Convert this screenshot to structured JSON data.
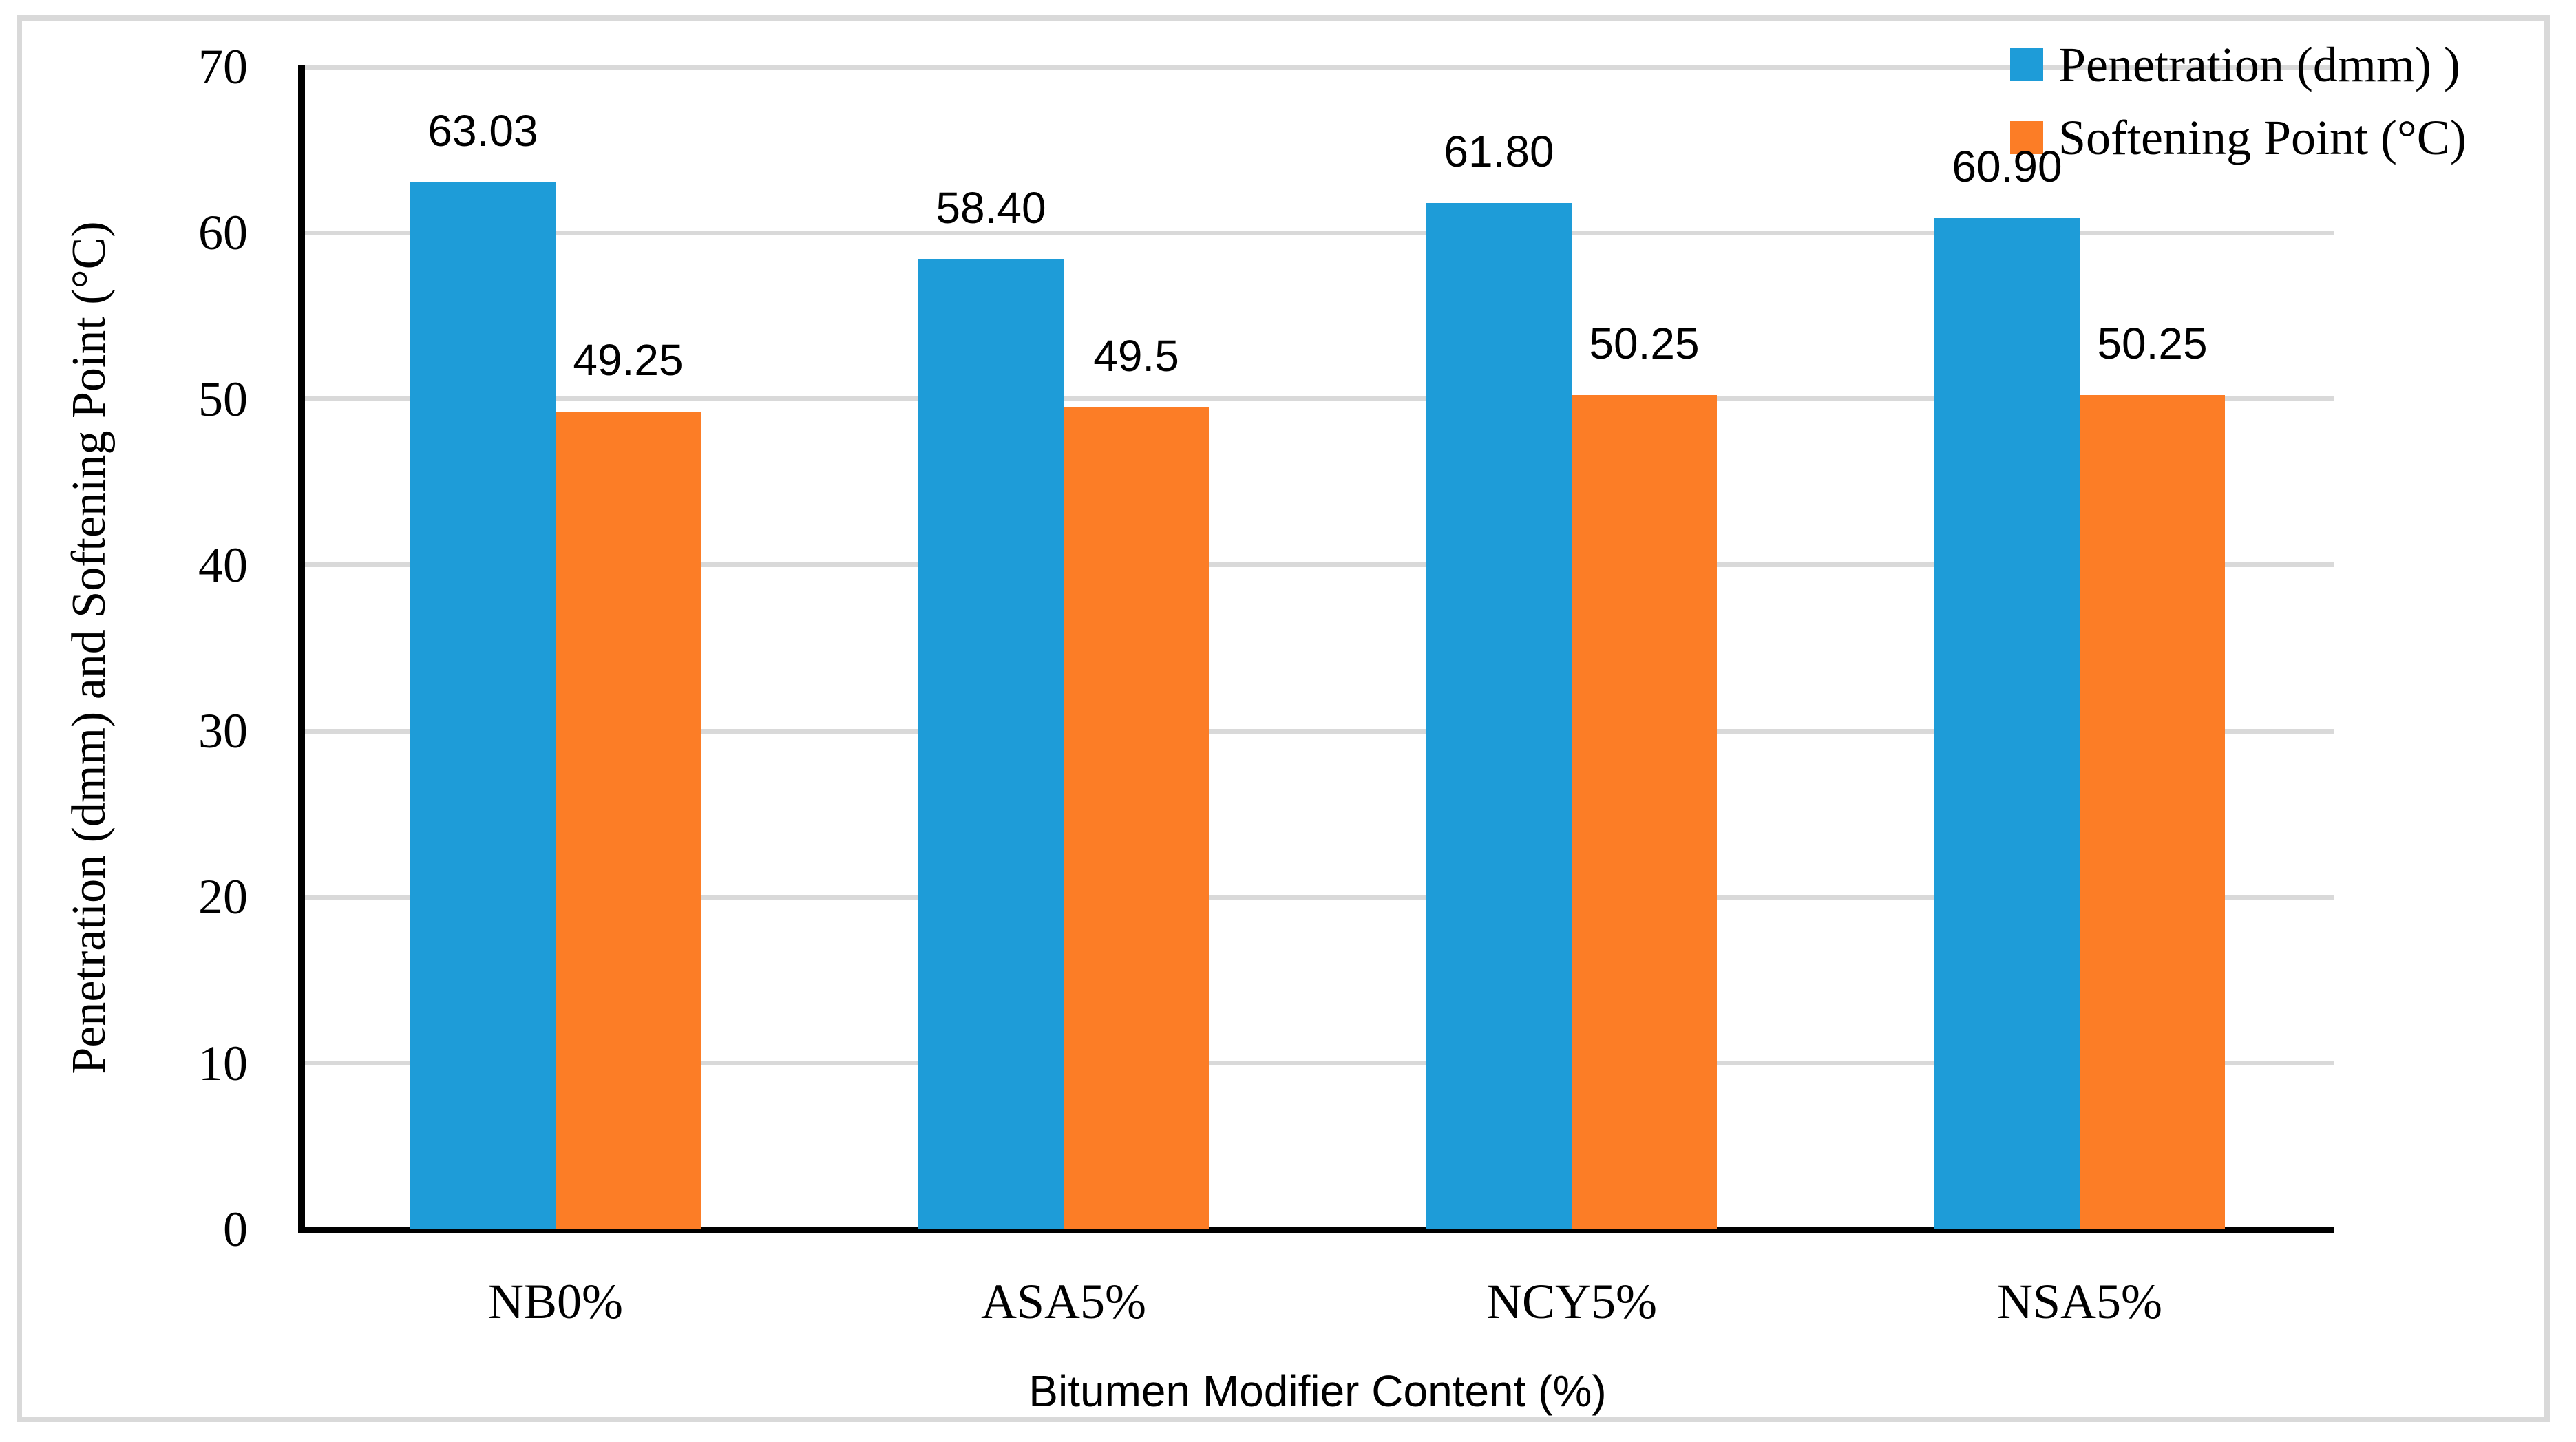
{
  "chart_data": {
    "type": "bar",
    "title": "",
    "categories": [
      "NB0%",
      "ASA5%",
      "NCY5%",
      "NSA5%"
    ],
    "series": [
      {
        "name": "Penetration (dmm) )",
        "color": "#1E9CD8",
        "values": [
          63.03,
          58.4,
          61.8,
          60.9
        ],
        "labels": [
          "63.03",
          "58.40",
          "61.80",
          "60.90"
        ]
      },
      {
        "name": "Softening Point (°C)",
        "color": "#FC7D26",
        "values": [
          49.25,
          49.5,
          50.25,
          50.25
        ],
        "labels": [
          "49.25",
          "49.5",
          "50.25",
          "50.25"
        ]
      }
    ],
    "xlabel": "Bitumen Modifier Content (%)",
    "ylabel": "Penetration (dmm) and Softening Point (°C)",
    "ylim": [
      0,
      70
    ],
    "yticks": [
      0,
      10,
      20,
      30,
      40,
      50,
      60,
      70
    ],
    "grid": true,
    "gridline_color": "#D9D9D9",
    "axis_color": "#000000",
    "frame_color": "#D9D9D9",
    "legend_position": "top-right"
  }
}
